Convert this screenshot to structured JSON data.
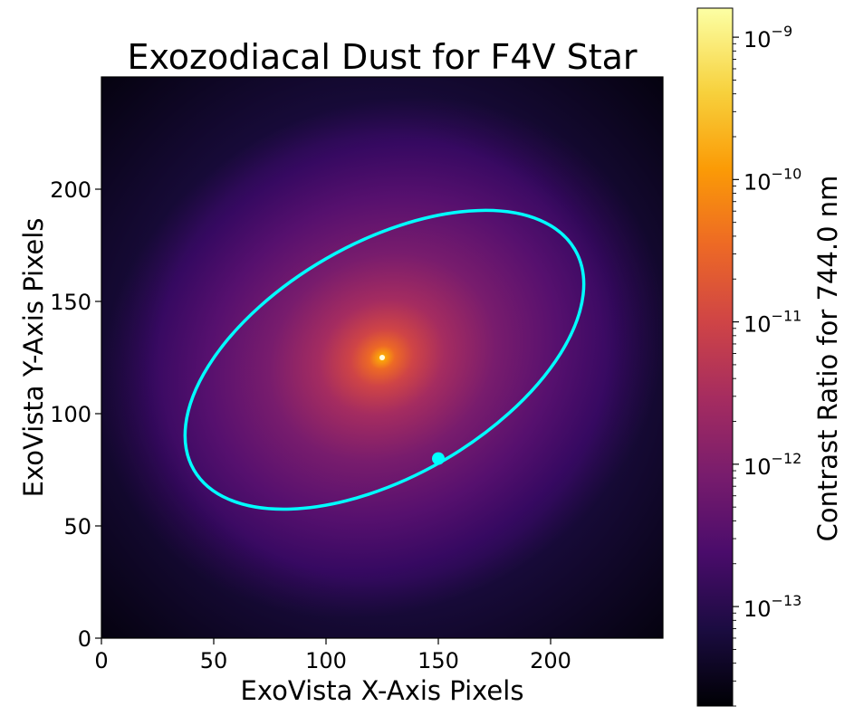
{
  "chart_data": {
    "type": "heatmap",
    "title": "Exozodiacal Dust for F4V Star",
    "xlabel": "ExoVista X-Axis Pixels",
    "ylabel": "ExoVista Y-Axis Pixels",
    "xlim": [
      0,
      250
    ],
    "ylim": [
      0,
      250
    ],
    "xticks": [
      0,
      50,
      100,
      150,
      200
    ],
    "yticks": [
      0,
      50,
      100,
      150,
      200
    ],
    "grid": false,
    "colormap": "inferno",
    "colorbar": {
      "label": "Contrast Ratio for 744.0 nm",
      "scale": "log",
      "range": [
        2e-14,
        1.6e-09
      ],
      "ticks": [
        {
          "base": "10",
          "exp": "−9",
          "value": 1e-09
        },
        {
          "base": "10",
          "exp": "−10",
          "value": 1e-10
        },
        {
          "base": "10",
          "exp": "−11",
          "value": 1e-11
        },
        {
          "base": "10",
          "exp": "−12",
          "value": 1e-12
        },
        {
          "base": "10",
          "exp": "−13",
          "value": 1e-13
        }
      ]
    },
    "star_center": [
      125,
      125
    ],
    "orbit": {
      "color": "#00ffff",
      "center": [
        126,
        124
      ],
      "semi_major": 98,
      "semi_minor": 52,
      "angle_deg": 30
    },
    "planet": {
      "x": 150,
      "y": 80,
      "color": "#00ffff"
    }
  }
}
